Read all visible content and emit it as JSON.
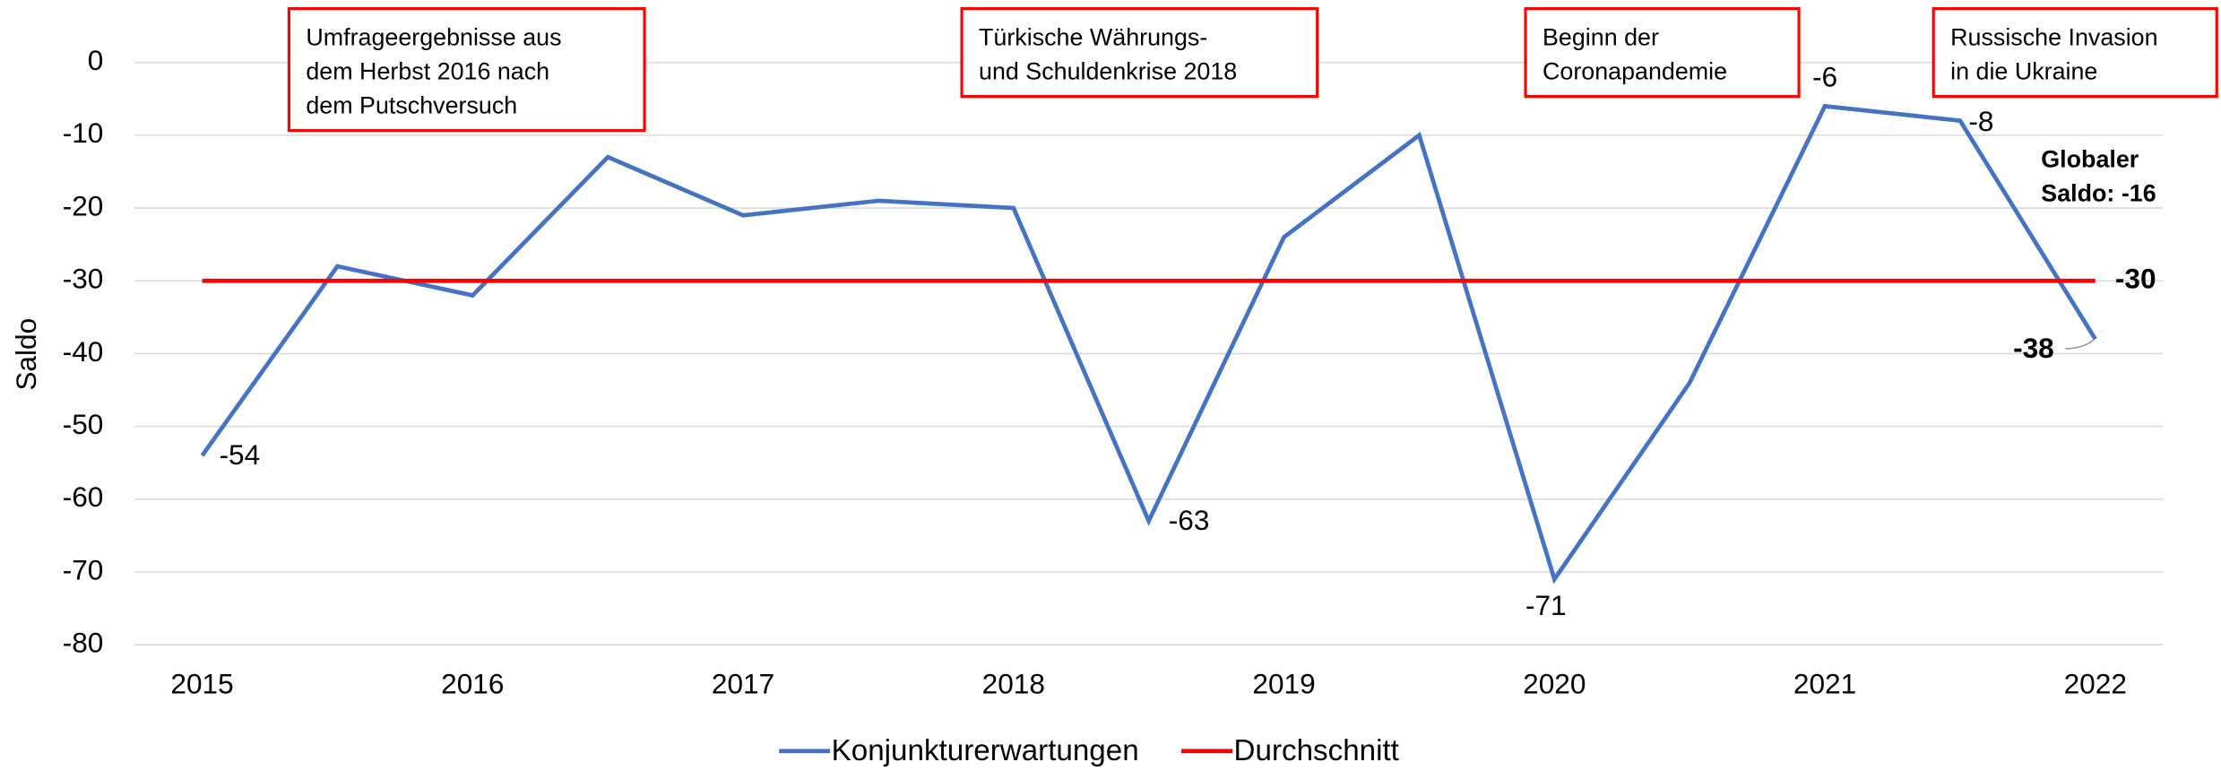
{
  "chart_data": {
    "type": "line",
    "y_axis_label": "Saldo",
    "x": [
      2015,
      2015.5,
      2016,
      2016.5,
      2017,
      2017.5,
      2018,
      2018.5,
      2019,
      2019.5,
      2020,
      2020.5,
      2021,
      2021.5,
      2022
    ],
    "series": [
      {
        "name": "Konjunkturerwartungen",
        "color": "#4472c4",
        "values": [
          -54,
          -28,
          -32,
          -13,
          -21,
          -19,
          -20,
          -63,
          -24,
          -10,
          -71,
          -44,
          -6,
          -8,
          -38
        ],
        "value_labels": [
          "-54",
          null,
          null,
          null,
          null,
          null,
          null,
          "-63",
          null,
          null,
          "-71",
          null,
          "-6",
          "-8",
          "-38"
        ]
      },
      {
        "name": "Durchschnitt",
        "color": "#ff0000",
        "values": [
          -30,
          -30,
          -30,
          -30,
          -30,
          -30,
          -30,
          -30,
          -30,
          -30,
          -30,
          -30,
          -30,
          -30,
          -30
        ],
        "value_labels": [
          null,
          null,
          null,
          null,
          null,
          null,
          null,
          null,
          null,
          null,
          null,
          null,
          null,
          null,
          "-30"
        ]
      }
    ],
    "xlim": [
      2014.75,
      2022.25
    ],
    "xticks": [
      2015,
      2016,
      2017,
      2018,
      2019,
      2020,
      2021,
      2022
    ],
    "ylim": [
      -80,
      0
    ],
    "yticks": [
      0,
      -10,
      -20,
      -30,
      -40,
      -50,
      -60,
      -70,
      -80
    ],
    "grid": true,
    "legend_position": "bottom",
    "annotations": [
      {
        "lines": [
          "Umfrageergebnisse aus",
          "dem Herbst 2016 nach",
          "dem Putschversuch"
        ]
      },
      {
        "lines": [
          "Türkische Währungs-",
          "und Schuldenkrise 2018"
        ]
      },
      {
        "lines": [
          "Beginn der",
          "Coronapandemie"
        ]
      },
      {
        "lines": [
          "Russische Invasion",
          "in die Ukraine"
        ]
      },
      {
        "lines": [
          "Globaler",
          "Saldo: -16"
        ]
      }
    ]
  }
}
